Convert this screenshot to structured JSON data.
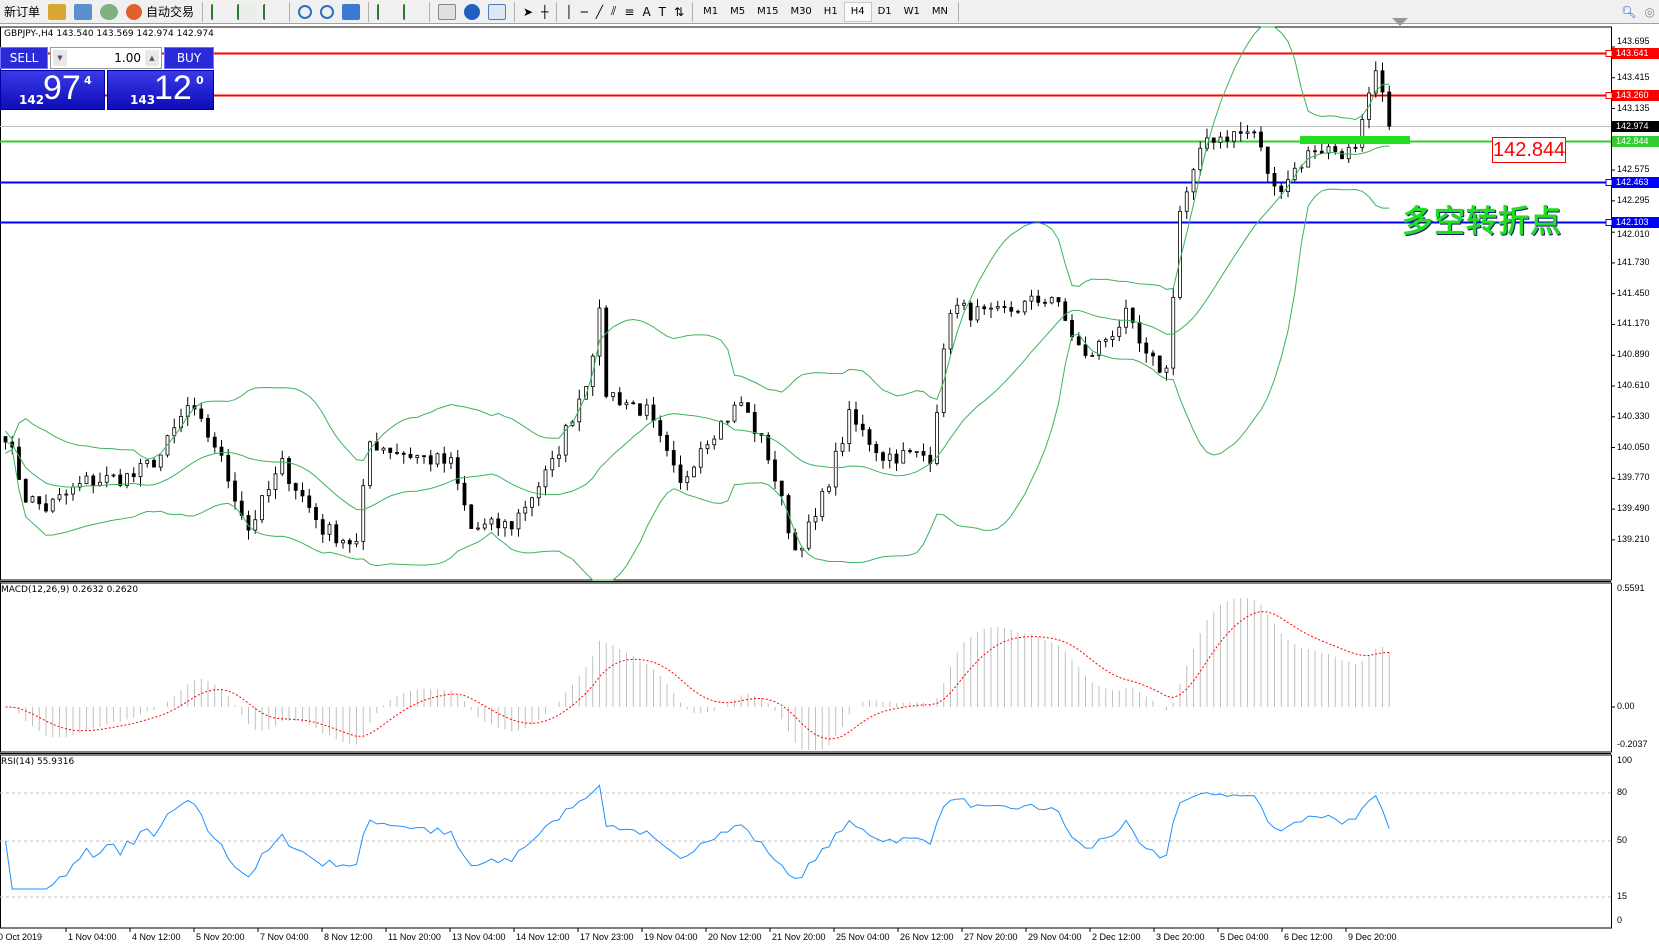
{
  "toolbar": {
    "new_order": "新订单",
    "auto_trading": "自动交易",
    "timeframes": [
      "M1",
      "M5",
      "M15",
      "M30",
      "H1",
      "H4",
      "D1",
      "W1",
      "MN"
    ],
    "active_timeframe": "H4",
    "icons": [
      "metaeditor-icon",
      "history-icon",
      "signals-icon",
      "auto-trading-icon",
      "bar-chart-icon",
      "candlestick-icon",
      "line-chart-icon",
      "zoom-in-icon",
      "zoom-out-icon",
      "tile-windows-icon",
      "auto-scroll-icon",
      "chart-shift-icon",
      "indicators-icon",
      "periods-icon",
      "templates-icon",
      "cursor-icon",
      "crosshair-icon",
      "vertical-line-icon",
      "horizontal-line-icon",
      "trendline-icon",
      "fibonacci-fan-icon",
      "fibonacci-icon",
      "text-icon",
      "text-label-icon",
      "arrows-icon",
      "search-icon",
      "community-icon"
    ]
  },
  "chart": {
    "header": "GBPJPY-,H4  143.540 143.569 142.974 142.974",
    "symbol": "GBPJPY-",
    "timeframe": "H4",
    "price_axis": [
      "143.695",
      "143.415",
      "143.135",
      "142.575",
      "142.295",
      "142.010",
      "141.730",
      "141.450",
      "141.170",
      "140.890",
      "140.610",
      "140.330",
      "140.050",
      "139.770",
      "139.490",
      "139.210"
    ],
    "levels": [
      {
        "price": "143.641",
        "color": "#ff0000"
      },
      {
        "price": "143.260",
        "color": "#ff0000"
      },
      {
        "price": "142.974",
        "color": "#000000",
        "line": "#c0c0c0"
      },
      {
        "price": "142.844",
        "color": "#33cc33"
      },
      {
        "price": "142.463",
        "color": "#0000ff"
      },
      {
        "price": "142.103",
        "color": "#0000ff"
      }
    ],
    "price_label": "142.844",
    "annotation": "多空转折点",
    "time_axis": [
      "0 Oct 2019",
      "1 Nov 04:00",
      "4 Nov 12:00",
      "5 Nov 20:00",
      "7 Nov 04:00",
      "8 Nov 12:00",
      "11 Nov 20:00",
      "13 Nov 04:00",
      "14 Nov 12:00",
      "17 Nov 23:00",
      "19 Nov 04:00",
      "20 Nov 12:00",
      "21 Nov 20:00",
      "25 Nov 04:00",
      "26 Nov 12:00",
      "27 Nov 20:00",
      "29 Nov 04:00",
      "2 Dec 12:00",
      "3 Dec 20:00",
      "5 Dec 04:00",
      "6 Dec 12:00",
      "9 Dec 20:00"
    ],
    "colors": {
      "bollinger": "#3cb35a",
      "macd_hist": "#c0c0c0",
      "macd_signal": "#ff0000",
      "rsi": "#1e90ff"
    }
  },
  "trade": {
    "sell": "SELL",
    "buy": "BUY",
    "lot": "1.00",
    "sell_big": "97",
    "sell_small": "142",
    "sell_sup": "4",
    "buy_big": "12",
    "buy_small": "143",
    "buy_sup": "0"
  },
  "macd": {
    "label": "MACD(12,26,9) 0.2632 0.2620",
    "axis": [
      "0.5591",
      "0.00",
      "-0.2037"
    ]
  },
  "rsi": {
    "label": "RSI(14) 55.9316",
    "axis": [
      "100",
      "80",
      "50",
      "15",
      "0"
    ]
  }
}
